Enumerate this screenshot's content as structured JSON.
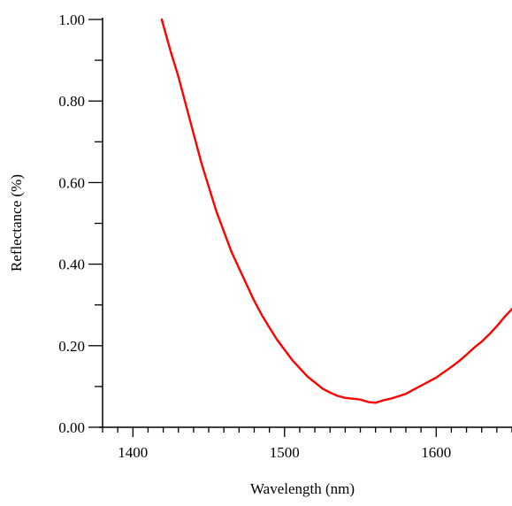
{
  "chart_data": {
    "type": "line",
    "title": "",
    "xlabel": "Wavelength (nm)",
    "ylabel": "Reflectance (%)",
    "xlim": [
      1380,
      1650
    ],
    "ylim": [
      0.0,
      1.0
    ],
    "x_ticks": [
      1400,
      1500,
      1600
    ],
    "x_tick_labels": [
      "1400",
      "1500",
      "1600"
    ],
    "y_ticks": [
      0.0,
      0.2,
      0.4,
      0.6,
      0.8,
      1.0
    ],
    "y_tick_labels": [
      "0.00",
      "0.20",
      "0.40",
      "0.60",
      "0.80",
      "1.00"
    ],
    "grid": false,
    "legend": "none",
    "series": [
      {
        "color": "#ff0000",
        "x": [
          1419,
          1425,
          1430,
          1435,
          1440,
          1445,
          1450,
          1455,
          1460,
          1465,
          1470,
          1475,
          1480,
          1485,
          1490,
          1495,
          1500,
          1505,
          1510,
          1515,
          1520,
          1525,
          1530,
          1535,
          1540,
          1545,
          1550,
          1555,
          1560,
          1565,
          1570,
          1575,
          1580,
          1585,
          1590,
          1595,
          1600,
          1605,
          1610,
          1615,
          1620,
          1625,
          1630,
          1635,
          1640,
          1645,
          1650
        ],
        "y": [
          1.0,
          0.92,
          0.86,
          0.79,
          0.72,
          0.65,
          0.59,
          0.53,
          0.48,
          0.43,
          0.39,
          0.35,
          0.31,
          0.275,
          0.245,
          0.215,
          0.19,
          0.165,
          0.145,
          0.125,
          0.11,
          0.095,
          0.085,
          0.077,
          0.072,
          0.07,
          0.068,
          0.062,
          0.06,
          0.066,
          0.07,
          0.076,
          0.082,
          0.092,
          0.102,
          0.112,
          0.122,
          0.135,
          0.148,
          0.162,
          0.178,
          0.195,
          0.21,
          0.228,
          0.248,
          0.27,
          0.29
        ]
      }
    ]
  }
}
